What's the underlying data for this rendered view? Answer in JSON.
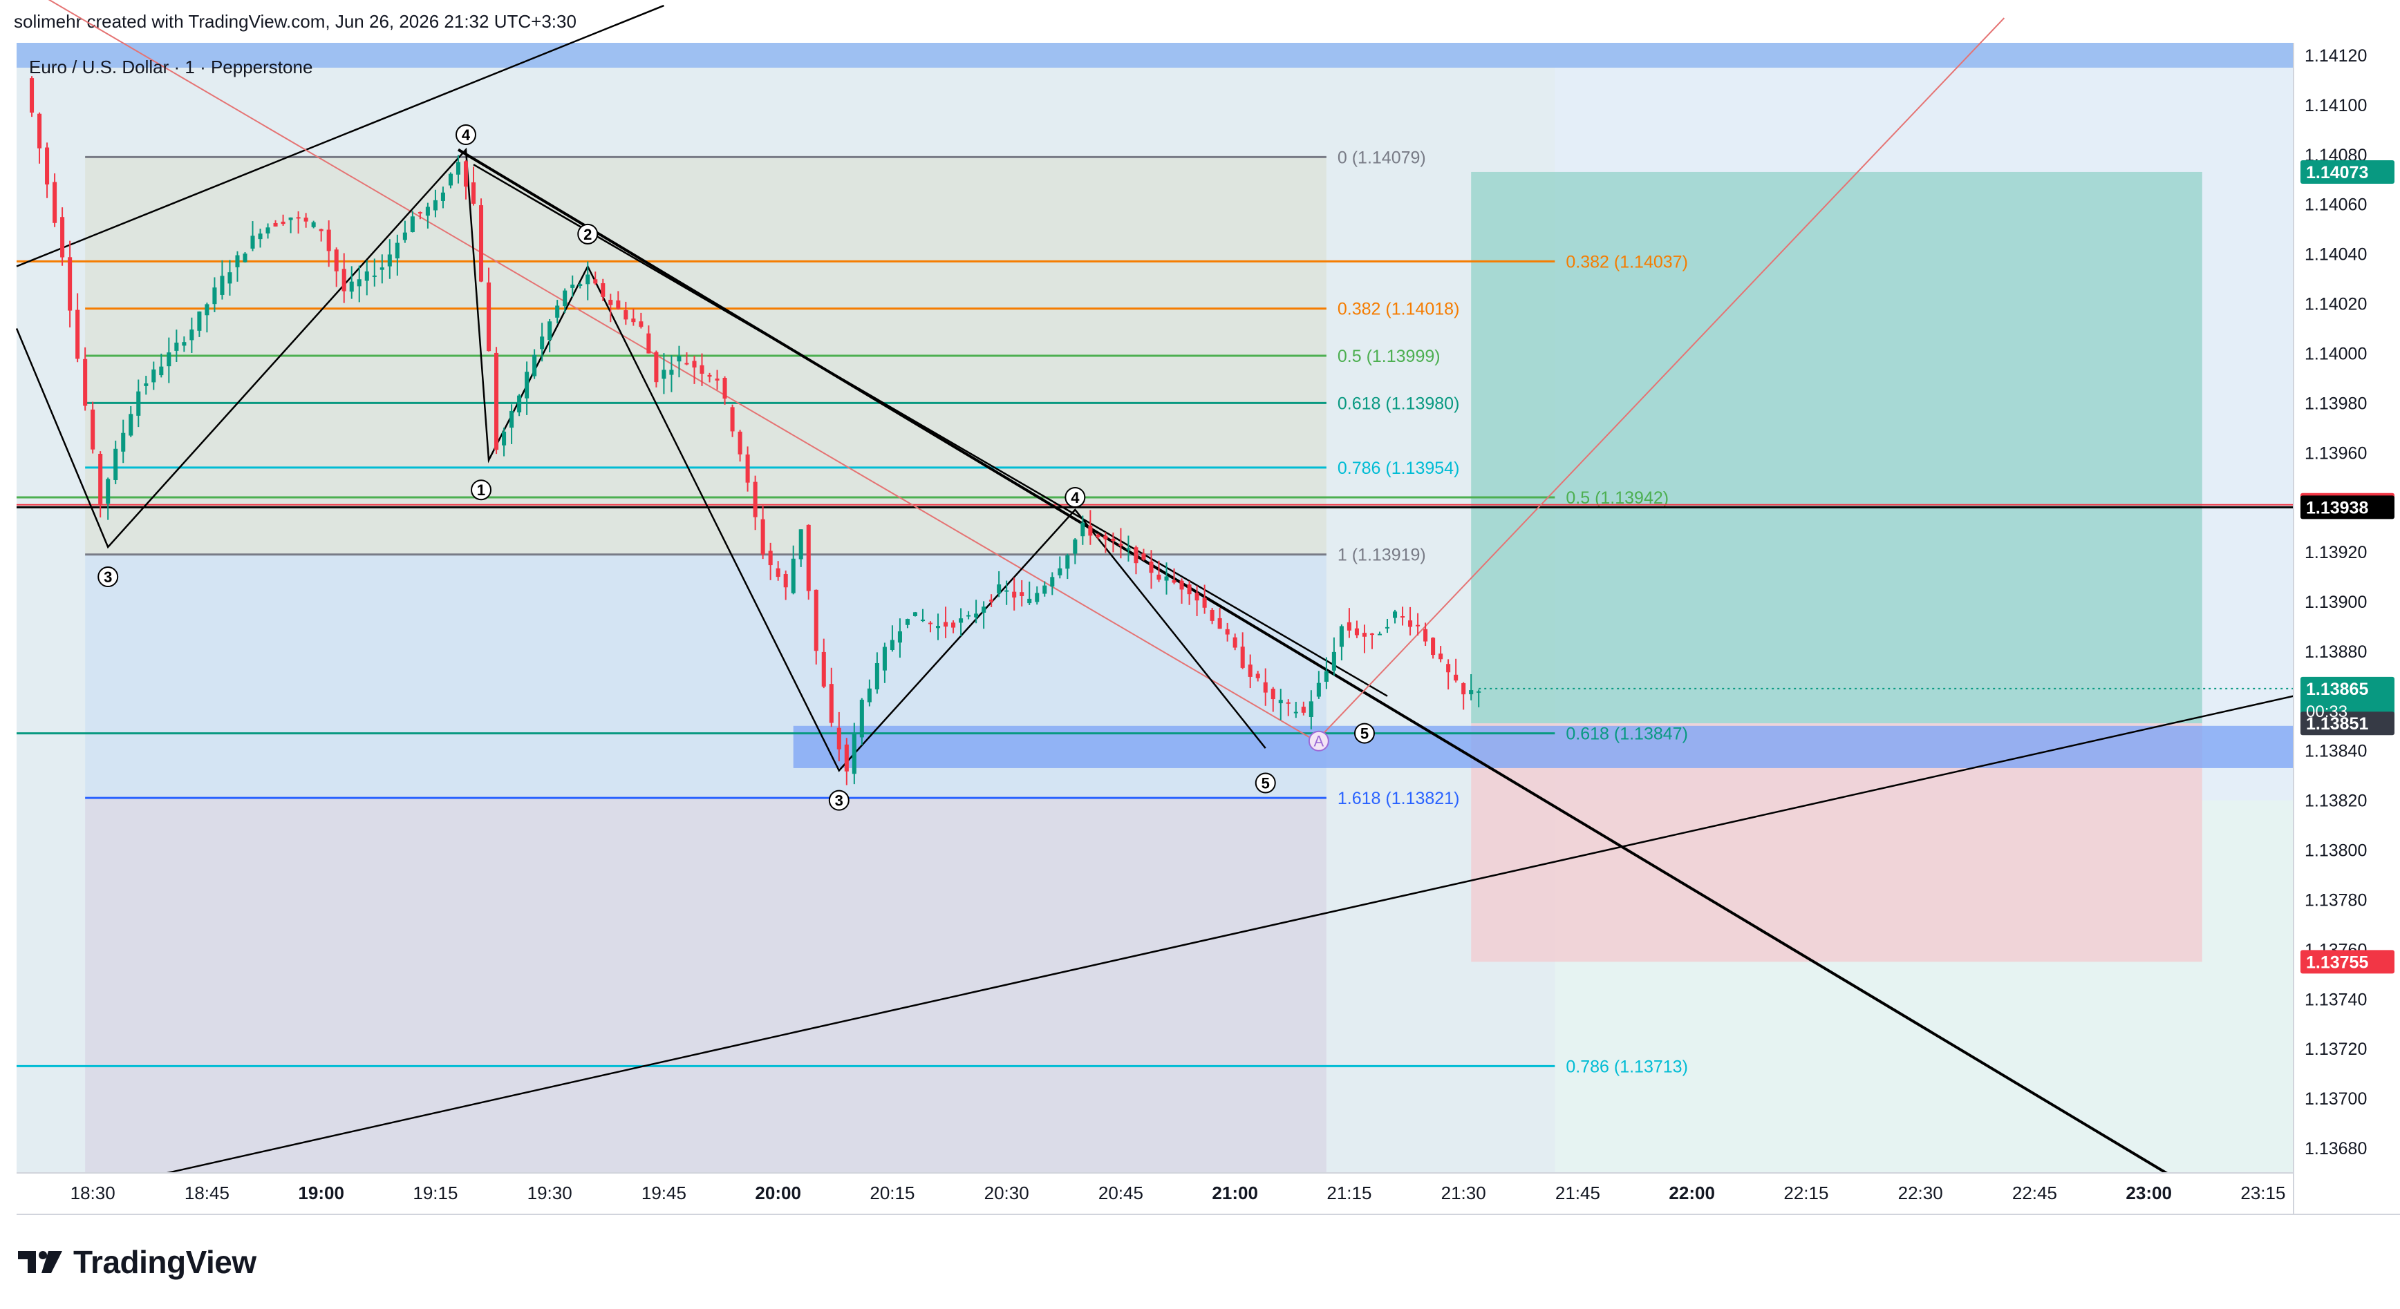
{
  "header": {
    "credit": "solimehr created with TradingView.com, Jun 26, 2026 21:32 UTC+3:30",
    "symbol": "Euro / U.S. Dollar · 1 · Pepperstone"
  },
  "brand": {
    "logo_text": "TradingView",
    "logo_icon": "tradingview-logo-icon"
  },
  "colors": {
    "up": "#089981",
    "down": "#f23645",
    "text": "#131722",
    "axis_text": "#131722"
  },
  "chart_data": {
    "type": "candlestick",
    "ylim": [
      1.1367,
      1.14125
    ],
    "xlim": [
      "18:20",
      "23:19"
    ],
    "y_ticks": [
      "1.14120",
      "1.14100",
      "1.14080",
      "1.14060",
      "1.14040",
      "1.14020",
      "1.14000",
      "1.13980",
      "1.13960",
      "1.13940",
      "1.13920",
      "1.13900",
      "1.13880",
      "1.13860",
      "1.13840",
      "1.13820",
      "1.13800",
      "1.13780",
      "1.13760",
      "1.13740",
      "1.13720",
      "1.13700",
      "1.13680"
    ],
    "x_ticks": [
      {
        "label": "18:30",
        "bold": false
      },
      {
        "label": "18:45",
        "bold": false
      },
      {
        "label": "19:00",
        "bold": true
      },
      {
        "label": "19:15",
        "bold": false
      },
      {
        "label": "19:30",
        "bold": false
      },
      {
        "label": "19:45",
        "bold": false
      },
      {
        "label": "20:00",
        "bold": true
      },
      {
        "label": "20:15",
        "bold": false
      },
      {
        "label": "20:30",
        "bold": false
      },
      {
        "label": "20:45",
        "bold": false
      },
      {
        "label": "21:00",
        "bold": true
      },
      {
        "label": "21:15",
        "bold": false
      },
      {
        "label": "21:30",
        "bold": false
      },
      {
        "label": "21:45",
        "bold": false
      },
      {
        "label": "22:00",
        "bold": true
      },
      {
        "label": "22:15",
        "bold": false
      },
      {
        "label": "22:30",
        "bold": false
      },
      {
        "label": "22:45",
        "bold": false
      },
      {
        "label": "23:00",
        "bold": true
      },
      {
        "label": "23:15",
        "bold": false
      }
    ],
    "price_path": [
      [
        "18:20",
        1.14125
      ],
      [
        "18:26",
        1.1404
      ],
      [
        "18:28",
        1.13998
      ],
      [
        "18:31",
        1.1394
      ],
      [
        "18:33",
        1.1396
      ],
      [
        "18:36",
        1.13985
      ],
      [
        "18:43",
        1.1401
      ],
      [
        "18:47",
        1.1403
      ],
      [
        "18:52",
        1.1405
      ],
      [
        "18:56",
        1.14055
      ],
      [
        "19:00",
        1.1405
      ],
      [
        "19:03",
        1.14025
      ],
      [
        "19:08",
        1.14035
      ],
      [
        "19:12",
        1.14055
      ],
      [
        "19:15",
        1.1406
      ],
      [
        "19:18",
        1.14078
      ],
      [
        "19:20",
        1.1406
      ],
      [
        "19:22",
        1.14
      ],
      [
        "19:23",
        1.13962
      ],
      [
        "19:25",
        1.13975
      ],
      [
        "19:28",
        1.14
      ],
      [
        "19:32",
        1.14025
      ],
      [
        "19:35",
        1.1403
      ],
      [
        "19:38",
        1.1402
      ],
      [
        "19:42",
        1.1401
      ],
      [
        "19:44",
        1.1399
      ],
      [
        "19:47",
        1.13998
      ],
      [
        "19:52",
        1.1399
      ],
      [
        "19:55",
        1.1396
      ],
      [
        "19:58",
        1.1392
      ],
      [
        "20:01",
        1.13905
      ],
      [
        "20:03",
        1.1393
      ],
      [
        "20:05",
        1.1388
      ],
      [
        "20:07",
        1.1385
      ],
      [
        "20:09",
        1.13832
      ],
      [
        "20:11",
        1.1386
      ],
      [
        "20:14",
        1.1388
      ],
      [
        "20:17",
        1.13895
      ],
      [
        "20:21",
        1.1389
      ],
      [
        "20:25",
        1.13893
      ],
      [
        "20:29",
        1.13905
      ],
      [
        "20:33",
        1.139
      ],
      [
        "20:37",
        1.13915
      ],
      [
        "20:40",
        1.1393
      ],
      [
        "20:42",
        1.13926
      ],
      [
        "20:46",
        1.1392
      ],
      [
        "20:50",
        1.1391
      ],
      [
        "20:54",
        1.13905
      ],
      [
        "20:58",
        1.1389
      ],
      [
        "21:01",
        1.13875
      ],
      [
        "21:05",
        1.1386
      ],
      [
        "21:09",
        1.13855
      ],
      [
        "21:12",
        1.13872
      ],
      [
        "21:14",
        1.1389
      ],
      [
        "21:18",
        1.13885
      ],
      [
        "21:21",
        1.13895
      ],
      [
        "21:24",
        1.1389
      ],
      [
        "21:27",
        1.13875
      ],
      [
        "21:30",
        1.13862
      ],
      [
        "21:32",
        1.13865
      ]
    ],
    "current_price": {
      "value": 1.13865,
      "countdown": "00:33"
    },
    "price_labels": [
      {
        "text": "1.14073",
        "value": 1.14073,
        "bg": "#089981",
        "fg": "#ffffff"
      },
      {
        "text": "1.13939",
        "value": 1.13939,
        "bg": "#f23645",
        "fg": "#ffffff"
      },
      {
        "text": "1.13938",
        "value": 1.13938,
        "bg": "#000000",
        "fg": "#ffffff"
      },
      {
        "text": "1.13865",
        "value": 1.13865,
        "bg": "#089981",
        "fg": "#ffffff"
      },
      {
        "text": "1.13851",
        "value": 1.13851,
        "bg": "#363a45",
        "fg": "#ffffff"
      },
      {
        "text": "1.13755",
        "value": 1.13755,
        "bg": "#f23645",
        "fg": "#ffffff"
      }
    ],
    "fib_left": {
      "from": "18:29",
      "to": "21:12",
      "levels": [
        {
          "label": "0 (1.14079)",
          "value": 1.14079,
          "color": "#787b86"
        },
        {
          "label": "0.382 (1.14018)",
          "value": 1.14018,
          "color": "#f57c00"
        },
        {
          "label": "0.5 (1.13999)",
          "value": 1.13999,
          "color": "#4caf50"
        },
        {
          "label": "0.618 (1.13980)",
          "value": 1.1398,
          "color": "#089981"
        },
        {
          "label": "0.786 (1.13954)",
          "value": 1.13954,
          "color": "#00bcd4"
        },
        {
          "label": "1 (1.13919)",
          "value": 1.13919,
          "color": "#787b86"
        },
        {
          "label": "1.618 (1.13821)",
          "value": 1.13821,
          "color": "#2962ff"
        }
      ]
    },
    "fib_right": {
      "from": "18:20",
      "to": "21:42",
      "levels": [
        {
          "label": "0.382 (1.14037)",
          "value": 1.14037,
          "color": "#f57c00"
        },
        {
          "label": "0.5 (1.13942)",
          "value": 1.13942,
          "color": "#4caf50"
        },
        {
          "label": "0.618 (1.13847)",
          "value": 1.13847,
          "color": "#089981"
        },
        {
          "label": "0.786 (1.13713)",
          "value": 1.13713,
          "color": "#00bcd4"
        }
      ]
    },
    "wave_labels": [
      {
        "text": "4",
        "t": "19:19",
        "v": 1.14088
      },
      {
        "text": "2",
        "t": "19:35",
        "v": 1.14048
      },
      {
        "text": "1",
        "t": "19:21",
        "v": 1.13945
      },
      {
        "text": "3",
        "t": "18:32",
        "v": 1.1391
      },
      {
        "text": "3",
        "t": "20:08",
        "v": 1.1382
      },
      {
        "text": "4",
        "t": "20:39",
        "v": 1.13942
      },
      {
        "text": "5",
        "t": "21:17",
        "v": 1.13847
      },
      {
        "text": "5",
        "t": "21:04",
        "v": 1.13827
      }
    ],
    "point_label": {
      "text": "A",
      "t": "21:11",
      "v": 1.1384
    }
  }
}
